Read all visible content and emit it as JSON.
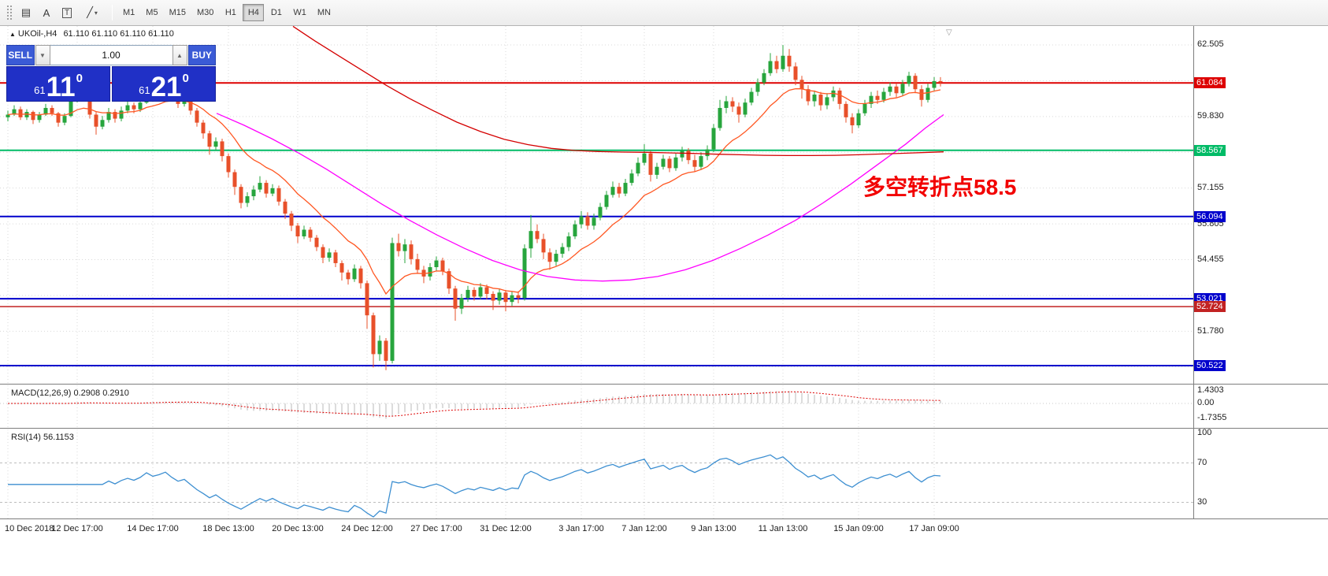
{
  "toolbar": {
    "tools": [
      {
        "name": "market-watch-icon",
        "glyph": "▤"
      },
      {
        "name": "annotation-a-icon",
        "glyph": "A"
      },
      {
        "name": "text-tool-icon",
        "glyph": "T"
      },
      {
        "name": "line-tools-icon",
        "glyph": "╱"
      }
    ],
    "timeframes": [
      "M1",
      "M5",
      "M15",
      "M30",
      "H1",
      "H4",
      "D1",
      "W1",
      "MN"
    ],
    "active_timeframe": "H4"
  },
  "symbol_info": {
    "symbol": "UKOil-,H4",
    "ohlc": "61.110 61.110 61.110 61.110"
  },
  "trade_panel": {
    "sell_label": "SELL",
    "buy_label": "BUY",
    "volume": "1.00",
    "bid": {
      "prefix": "61",
      "big": "11",
      "sup": "0"
    },
    "ask": {
      "prefix": "61",
      "big": "21",
      "sup": "0"
    }
  },
  "annotation": {
    "text": "多空转折点58.5",
    "color": "#f20000"
  },
  "price_scale": {
    "ticks": [
      {
        "label": "62.505",
        "price": 62.505
      },
      {
        "label": "59.830",
        "price": 59.83
      },
      {
        "label": "57.155",
        "price": 57.155
      },
      {
        "label": "55.805",
        "price": 55.805
      },
      {
        "label": "54.455",
        "price": 54.455
      },
      {
        "label": "51.780",
        "price": 51.78
      }
    ],
    "badges": [
      {
        "label": "61.084",
        "price": 61.084,
        "color": "#dd0000"
      },
      {
        "label": "58.567",
        "price": 58.567,
        "color": "#00bb66"
      },
      {
        "label": "56.094",
        "price": 56.094,
        "color": "#0000cc"
      },
      {
        "label": "53.021",
        "price": 53.021,
        "color": "#0000cc"
      },
      {
        "label": "52.724",
        "price": 52.724,
        "color": "#c22222"
      },
      {
        "label": "50.522",
        "price": 50.522,
        "color": "#0000cc"
      }
    ]
  },
  "indicators": {
    "macd": {
      "label": "MACD(12,26,9)",
      "value1": "0.2908",
      "value2": "0.2910",
      "scale_labels": [
        {
          "label": "1.4303",
          "v": 1.4303
        },
        {
          "label": "0.00",
          "v": 0
        },
        {
          "label": "-1.7355",
          "v": -1.7355
        }
      ]
    },
    "rsi": {
      "label": "RSI(14)",
      "value": "56.1153",
      "levels": [
        100,
        70,
        30
      ]
    }
  },
  "time_axis": [
    {
      "label": "10 Dec 2018",
      "i": 0
    },
    {
      "label": "12 Dec 17:00",
      "i": 11
    },
    {
      "label": "14 Dec 17:00",
      "i": 23
    },
    {
      "label": "18 Dec 13:00",
      "i": 35
    },
    {
      "label": "20 Dec 13:00",
      "i": 46
    },
    {
      "label": "24 Dec 12:00",
      "i": 57
    },
    {
      "label": "27 Dec 17:00",
      "i": 68
    },
    {
      "label": "31 Dec 12:00",
      "i": 79
    },
    {
      "label": "3 Jan 17:00",
      "i": 91
    },
    {
      "label": "7 Jan 12:00",
      "i": 101
    },
    {
      "label": "9 Jan 13:00",
      "i": 112
    },
    {
      "label": "11 Jan 13:00",
      "i": 123
    },
    {
      "label": "15 Jan 09:00",
      "i": 135
    },
    {
      "label": "17 Jan 09:00",
      "i": 147
    }
  ],
  "chart_data": {
    "type": "candlestick",
    "symbol": "UKOil-",
    "timeframe": "H4",
    "axis": {
      "price_min": 49.9,
      "price_max": 63.15
    },
    "grid_prices": [
      62.505,
      61.1675,
      59.83,
      58.4925,
      57.155,
      55.8175,
      54.48,
      53.1425,
      51.805,
      50.4675
    ],
    "levels": [
      {
        "price": 61.084,
        "color": "#dd0000",
        "w": 2
      },
      {
        "price": 58.567,
        "color": "#00bb66",
        "w": 2
      },
      {
        "price": 56.094,
        "color": "#0000cc",
        "w": 2
      },
      {
        "price": 53.021,
        "color": "#0000cc",
        "w": 2
      },
      {
        "price": 52.724,
        "color": "#c22222",
        "w": 1.5
      },
      {
        "price": 50.522,
        "color": "#0000cc",
        "w": 2
      }
    ],
    "colors": {
      "up": "#27a53d",
      "down": "#e8502a",
      "ma_fast": "#ff5722",
      "ma_mid": "#ff00ff",
      "ma_slow": "#d40000",
      "macd_hist": "#b8b8b8",
      "macd_signal": "#dd0000",
      "rsi": "#3d8fd1",
      "grid": "#d9d9d9"
    },
    "first_open": 59.8,
    "candles_hlc": [
      [
        60.05,
        59.65,
        59.9
      ],
      [
        60.25,
        59.85,
        60.1
      ],
      [
        60.2,
        59.7,
        59.8
      ],
      [
        60.1,
        59.7,
        60.0
      ],
      [
        60.05,
        59.55,
        59.7
      ],
      [
        60.0,
        59.6,
        59.9
      ],
      [
        60.3,
        59.85,
        60.15
      ],
      [
        60.25,
        59.85,
        59.95
      ],
      [
        60.0,
        59.45,
        59.6
      ],
      [
        59.95,
        59.5,
        59.85
      ],
      [
        60.6,
        59.8,
        60.4
      ],
      [
        61.25,
        60.35,
        60.85
      ],
      [
        61.0,
        60.4,
        60.5
      ],
      [
        60.6,
        59.75,
        59.9
      ],
      [
        60.0,
        59.15,
        59.45
      ],
      [
        59.85,
        59.35,
        59.7
      ],
      [
        60.15,
        59.6,
        60.0
      ],
      [
        60.1,
        59.6,
        59.75
      ],
      [
        60.2,
        59.65,
        60.05
      ],
      [
        60.4,
        59.95,
        60.25
      ],
      [
        60.35,
        59.95,
        60.1
      ],
      [
        60.5,
        60.0,
        60.35
      ],
      [
        61.15,
        60.3,
        60.8
      ],
      [
        60.95,
        60.4,
        60.55
      ],
      [
        60.85,
        60.4,
        60.7
      ],
      [
        61.1,
        60.6,
        60.95
      ],
      [
        61.05,
        60.45,
        60.6
      ],
      [
        60.7,
        60.15,
        60.3
      ],
      [
        60.6,
        60.2,
        60.45
      ],
      [
        60.55,
        59.9,
        60.05
      ],
      [
        60.15,
        59.45,
        59.6
      ],
      [
        59.7,
        59.0,
        59.2
      ],
      [
        59.3,
        58.4,
        58.7
      ],
      [
        59.05,
        58.55,
        58.9
      ],
      [
        59.0,
        58.15,
        58.35
      ],
      [
        58.45,
        57.55,
        57.75
      ],
      [
        57.85,
        56.9,
        57.2
      ],
      [
        57.3,
        56.4,
        56.6
      ],
      [
        57.0,
        56.45,
        56.85
      ],
      [
        57.25,
        56.7,
        57.1
      ],
      [
        57.6,
        57.0,
        57.35
      ],
      [
        57.45,
        56.8,
        56.95
      ],
      [
        57.3,
        56.85,
        57.15
      ],
      [
        57.25,
        56.5,
        56.65
      ],
      [
        56.75,
        56.0,
        56.2
      ],
      [
        56.3,
        55.55,
        55.75
      ],
      [
        55.85,
        55.1,
        55.35
      ],
      [
        55.75,
        55.25,
        55.6
      ],
      [
        55.7,
        55.15,
        55.3
      ],
      [
        55.4,
        54.8,
        54.95
      ],
      [
        55.05,
        54.35,
        54.55
      ],
      [
        54.9,
        54.4,
        54.75
      ],
      [
        54.85,
        54.2,
        54.35
      ],
      [
        54.45,
        53.7,
        54.0
      ],
      [
        54.1,
        53.55,
        53.75
      ],
      [
        54.3,
        53.65,
        54.15
      ],
      [
        54.25,
        53.4,
        53.6
      ],
      [
        53.7,
        51.9,
        52.4
      ],
      [
        52.5,
        50.45,
        50.95
      ],
      [
        51.65,
        50.7,
        51.45
      ],
      [
        51.55,
        50.35,
        50.7
      ],
      [
        55.3,
        50.6,
        55.1
      ],
      [
        55.45,
        54.6,
        54.8
      ],
      [
        55.25,
        54.35,
        55.05
      ],
      [
        55.2,
        54.3,
        54.5
      ],
      [
        54.7,
        53.95,
        54.1
      ],
      [
        54.25,
        53.6,
        53.85
      ],
      [
        54.35,
        53.7,
        54.2
      ],
      [
        54.6,
        54.05,
        54.45
      ],
      [
        54.55,
        53.9,
        54.05
      ],
      [
        54.15,
        53.2,
        53.4
      ],
      [
        53.5,
        52.2,
        52.65
      ],
      [
        53.2,
        52.45,
        53.05
      ],
      [
        53.5,
        52.9,
        53.35
      ],
      [
        53.45,
        52.95,
        53.1
      ],
      [
        53.6,
        53.0,
        53.45
      ],
      [
        53.55,
        53.0,
        53.2
      ],
      [
        53.3,
        52.6,
        52.95
      ],
      [
        53.4,
        52.8,
        53.25
      ],
      [
        53.35,
        52.55,
        52.9
      ],
      [
        53.3,
        52.75,
        53.15
      ],
      [
        53.3,
        52.85,
        53.05
      ],
      [
        55.05,
        52.95,
        54.9
      ],
      [
        56.15,
        54.55,
        55.55
      ],
      [
        55.8,
        55.1,
        55.25
      ],
      [
        55.45,
        54.5,
        54.75
      ],
      [
        54.9,
        54.1,
        54.4
      ],
      [
        54.85,
        54.25,
        54.7
      ],
      [
        55.1,
        54.55,
        54.95
      ],
      [
        55.5,
        54.8,
        55.35
      ],
      [
        55.95,
        55.25,
        55.8
      ],
      [
        56.3,
        55.65,
        56.1
      ],
      [
        56.25,
        55.6,
        55.75
      ],
      [
        56.2,
        55.6,
        56.05
      ],
      [
        56.6,
        55.95,
        56.45
      ],
      [
        57.05,
        56.35,
        56.9
      ],
      [
        57.4,
        56.8,
        57.2
      ],
      [
        57.35,
        56.8,
        56.95
      ],
      [
        57.5,
        56.85,
        57.35
      ],
      [
        57.85,
        57.25,
        57.7
      ],
      [
        58.3,
        57.6,
        58.1
      ],
      [
        58.8,
        58.0,
        58.45
      ],
      [
        58.55,
        57.4,
        57.65
      ],
      [
        58.1,
        57.5,
        57.95
      ],
      [
        58.4,
        57.85,
        58.25
      ],
      [
        58.35,
        57.75,
        57.9
      ],
      [
        58.45,
        57.8,
        58.3
      ],
      [
        58.7,
        58.15,
        58.55
      ],
      [
        58.65,
        58.05,
        58.2
      ],
      [
        58.4,
        57.75,
        57.95
      ],
      [
        58.5,
        57.85,
        58.35
      ],
      [
        58.75,
        58.2,
        58.6
      ],
      [
        59.55,
        58.5,
        59.4
      ],
      [
        60.45,
        59.3,
        60.15
      ],
      [
        60.6,
        59.95,
        60.4
      ],
      [
        60.55,
        60.0,
        60.2
      ],
      [
        60.35,
        59.6,
        59.9
      ],
      [
        60.5,
        59.8,
        60.35
      ],
      [
        60.9,
        60.25,
        60.75
      ],
      [
        61.25,
        60.6,
        61.1
      ],
      [
        61.6,
        61.0,
        61.45
      ],
      [
        62.2,
        61.35,
        61.9
      ],
      [
        62.1,
        61.45,
        61.6
      ],
      [
        62.5,
        61.5,
        62.1
      ],
      [
        62.35,
        61.5,
        61.7
      ],
      [
        61.85,
        61.0,
        61.2
      ],
      [
        61.35,
        60.5,
        60.85
      ],
      [
        61.0,
        60.25,
        60.4
      ],
      [
        60.8,
        60.2,
        60.65
      ],
      [
        60.75,
        60.05,
        60.25
      ],
      [
        60.7,
        60.1,
        60.55
      ],
      [
        60.95,
        60.4,
        60.8
      ],
      [
        60.9,
        60.1,
        60.3
      ],
      [
        60.4,
        59.6,
        59.8
      ],
      [
        59.95,
        59.2,
        59.5
      ],
      [
        60.1,
        59.4,
        59.95
      ],
      [
        60.45,
        59.85,
        60.3
      ],
      [
        60.75,
        60.15,
        60.6
      ],
      [
        60.8,
        60.3,
        60.45
      ],
      [
        60.9,
        60.35,
        60.75
      ],
      [
        61.1,
        60.6,
        60.95
      ],
      [
        61.05,
        60.55,
        60.7
      ],
      [
        61.2,
        60.6,
        61.05
      ],
      [
        61.5,
        60.95,
        61.35
      ],
      [
        61.45,
        60.7,
        60.85
      ],
      [
        61.0,
        60.2,
        60.45
      ],
      [
        61.05,
        60.35,
        60.9
      ],
      [
        61.3,
        60.8,
        61.15
      ],
      [
        61.3,
        60.95,
        61.11
      ]
    ],
    "ma_fast_period": 13,
    "ma_slow_points": [
      [
        372,
        63.2
      ],
      [
        400,
        62.65
      ],
      [
        430,
        62.1
      ],
      [
        460,
        61.55
      ],
      [
        490,
        61.0
      ],
      [
        520,
        60.5
      ],
      [
        550,
        60.05
      ],
      [
        580,
        59.62
      ],
      [
        610,
        59.27
      ],
      [
        640,
        58.98
      ],
      [
        670,
        58.78
      ],
      [
        700,
        58.64
      ],
      [
        730,
        58.56
      ],
      [
        760,
        58.52
      ],
      [
        790,
        58.5
      ],
      [
        820,
        58.49
      ],
      [
        850,
        58.47
      ],
      [
        880,
        58.45
      ],
      [
        910,
        58.42
      ],
      [
        940,
        58.4
      ],
      [
        970,
        58.38
      ],
      [
        1000,
        58.37
      ],
      [
        1030,
        58.37
      ],
      [
        1060,
        58.38
      ],
      [
        1090,
        58.4
      ],
      [
        1120,
        58.43
      ],
      [
        1150,
        58.46
      ],
      [
        1180,
        58.49
      ],
      [
        1198,
        58.51
      ]
    ],
    "ma_mid_points": [
      [
        275,
        59.95
      ],
      [
        310,
        59.5
      ],
      [
        345,
        59.0
      ],
      [
        380,
        58.45
      ],
      [
        415,
        57.85
      ],
      [
        450,
        57.2
      ],
      [
        485,
        56.55
      ],
      [
        520,
        55.95
      ],
      [
        555,
        55.4
      ],
      [
        590,
        54.9
      ],
      [
        625,
        54.45
      ],
      [
        660,
        54.1
      ],
      [
        695,
        53.85
      ],
      [
        730,
        53.72
      ],
      [
        765,
        53.68
      ],
      [
        800,
        53.72
      ],
      [
        835,
        53.85
      ],
      [
        870,
        54.1
      ],
      [
        905,
        54.45
      ],
      [
        940,
        54.9
      ],
      [
        975,
        55.4
      ],
      [
        1010,
        55.95
      ],
      [
        1045,
        56.6
      ],
      [
        1080,
        57.3
      ],
      [
        1115,
        58.05
      ],
      [
        1150,
        58.8
      ],
      [
        1175,
        59.4
      ],
      [
        1198,
        59.9
      ]
    ]
  }
}
